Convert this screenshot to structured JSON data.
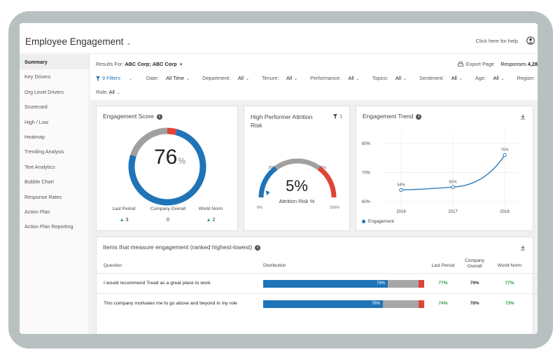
{
  "header": {
    "title": "Employee Engagement",
    "help_link": "Click here for help"
  },
  "sidebar": {
    "items": [
      {
        "label": "Summary",
        "active": true
      },
      {
        "label": "Key Drivers"
      },
      {
        "label": "Org Level Drivers"
      },
      {
        "label": "Scorecard"
      },
      {
        "label": "High / Low"
      },
      {
        "label": "Heatmap"
      },
      {
        "label": "Trending Analysis"
      },
      {
        "label": "Text Analytics"
      },
      {
        "label": "Bubble Chart"
      },
      {
        "label": "Response Rates"
      },
      {
        "label": "Action Plan"
      },
      {
        "label": "Action Plan Reporting"
      }
    ]
  },
  "filters": {
    "results_for_label": "Results For:",
    "org1": "ABC Corp;",
    "org2": "ABC Corp",
    "export_label": "Export Page",
    "responses_label": "Responses",
    "responses_value": "4,28",
    "filter_count": "9 Filters",
    "items": [
      {
        "label": "Date:",
        "value": "All Time"
      },
      {
        "label": "Department:",
        "value": "All"
      },
      {
        "label": "Tenure:",
        "value": "All"
      },
      {
        "label": "Performance:",
        "value": "All"
      },
      {
        "label": "Topics:",
        "value": "All"
      },
      {
        "label": "Sentiment:",
        "value": "All"
      },
      {
        "label": "Age:",
        "value": "All"
      },
      {
        "label": "Region:",
        "value": "All"
      }
    ],
    "role_label": "Role:",
    "role_value": "All"
  },
  "engagement_score": {
    "title": "Engagement Score",
    "value": "76",
    "unit": "%",
    "segments": {
      "blue": 76,
      "gray": 20,
      "red": 4
    },
    "comparisons": [
      {
        "label": "Last Period",
        "value": "3",
        "trend": "up"
      },
      {
        "label": "Company Overall",
        "value": "0",
        "trend": "none"
      },
      {
        "label": "World Norm",
        "value": "2",
        "trend": "up"
      }
    ]
  },
  "attrition": {
    "title_line1": "High Performer Attrition",
    "title_line2": "Risk",
    "filter_count": "1",
    "value": "5%",
    "label": "Attrition Risk %",
    "tick_0": "0%",
    "tick_30": "30%",
    "tick_70": "70%",
    "tick_100": "100%",
    "pointer_value": 5
  },
  "trend": {
    "title": "Engagement Trend",
    "legend": "Engagement",
    "colors": {
      "line": "#1f74b8"
    }
  },
  "chart_data": {
    "type": "line",
    "x": [
      "2016",
      "2017",
      "2018"
    ],
    "series": [
      {
        "name": "Engagement",
        "values": [
          64,
          65,
          76
        ]
      }
    ],
    "point_labels": [
      "64%",
      "65%",
      "76%"
    ],
    "y_ticks": [
      "60%",
      "70%",
      "80%"
    ],
    "ylim": [
      60,
      80
    ],
    "grid": true,
    "legend": "bottom-left"
  },
  "items_table": {
    "title": "Items that measure engagement (ranked highest-lowest)",
    "headers": {
      "question": "Question",
      "distribution": "Distribution",
      "last_period": "Last Period",
      "company_overall_1": "Company",
      "company_overall_2": "Overall",
      "world_norm": "World Norm"
    },
    "rows": [
      {
        "question": "I would recommend Tread as a great place to work",
        "favorable": 79,
        "favorable_label": "79%",
        "last_period": "77%",
        "company_overall": "79%",
        "world_norm": "77%"
      },
      {
        "question": "This company motivates me to go above and beyond in my role",
        "favorable": 76,
        "favorable_label": "76%",
        "last_period": "74%",
        "company_overall": "78%",
        "world_norm": "73%"
      }
    ]
  }
}
